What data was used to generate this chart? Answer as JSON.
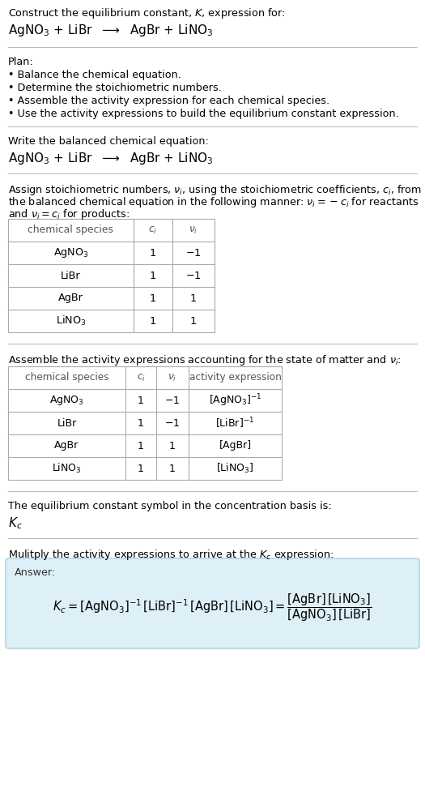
{
  "bg_color": "#ffffff",
  "answer_bg": "#def0f7",
  "answer_border": "#a8cfe0",
  "title_line1": "Construct the equilibrium constant, $K$, expression for:",
  "title_line2": "AgNO$_3$ + LiBr  $\\longrightarrow$  AgBr + LiNO$_3$",
  "plan_header": "Plan:",
  "plan_items": [
    "• Balance the chemical equation.",
    "• Determine the stoichiometric numbers.",
    "• Assemble the activity expression for each chemical species.",
    "• Use the activity expressions to build the equilibrium constant expression."
  ],
  "balanced_eq_header": "Write the balanced chemical equation:",
  "balanced_eq": "AgNO$_3$ + LiBr  $\\longrightarrow$  AgBr + LiNO$_3$",
  "stoich_intro1": "Assign stoichiometric numbers, $\\nu_i$, using the stoichiometric coefficients, $c_i$, from",
  "stoich_intro2": "the balanced chemical equation in the following manner: $\\nu_i = -c_i$ for reactants",
  "stoich_intro3": "and $\\nu_i = c_i$ for products:",
  "table1_headers": [
    "chemical species",
    "$c_i$",
    "$\\nu_i$"
  ],
  "table1_col_ws": [
    155,
    48,
    52
  ],
  "table1_rows": [
    [
      "AgNO$_3$",
      "1",
      "$-1$"
    ],
    [
      "LiBr",
      "1",
      "$-1$"
    ],
    [
      "AgBr",
      "1",
      "1"
    ],
    [
      "LiNO$_3$",
      "1",
      "1"
    ]
  ],
  "activity_intro": "Assemble the activity expressions accounting for the state of matter and $\\nu_i$:",
  "table2_headers": [
    "chemical species",
    "$c_i$",
    "$\\nu_i$",
    "activity expression"
  ],
  "table2_col_ws": [
    145,
    38,
    40,
    115
  ],
  "table2_rows": [
    [
      "AgNO$_3$",
      "1",
      "$-1$",
      "[AgNO$_3$]$^{-1}$"
    ],
    [
      "LiBr",
      "1",
      "$-1$",
      "[LiBr]$^{-1}$"
    ],
    [
      "AgBr",
      "1",
      "1",
      "[AgBr]"
    ],
    [
      "LiNO$_3$",
      "1",
      "1",
      "[LiNO$_3$]"
    ]
  ],
  "kc_intro": "The equilibrium constant symbol in the concentration basis is:",
  "kc_symbol": "$K_c$",
  "multiply_intro": "Mulitply the activity expressions to arrive at the $K_c$ expression:",
  "answer_label": "Answer:",
  "answer_line1": "$K_c = [\\mathrm{AgNO_3}]^{-1}\\,[\\mathrm{LiBr}]^{-1}\\,[\\mathrm{AgBr}]\\,[\\mathrm{LiNO_3}] = \\dfrac{[\\mathrm{AgBr}]\\,[\\mathrm{LiNO_3}]}{[\\mathrm{AgNO_3}]\\,[\\mathrm{LiBr}]}$"
}
